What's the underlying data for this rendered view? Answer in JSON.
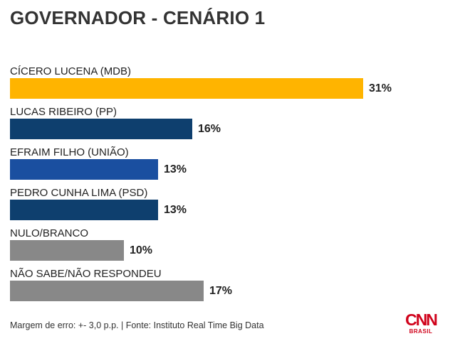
{
  "chart_data": {
    "type": "bar",
    "orientation": "horizontal",
    "title": "GOVERNADOR - CENÁRIO 1",
    "categories": [
      "CÍCERO LUCENA (MDB)",
      "LUCAS RIBEIRO (PP)",
      "EFRAIM FILHO (UNIÃO)",
      "PEDRO CUNHA LIMA (PSD)",
      "NULO/BRANCO",
      "NÃO SABE/NÃO RESPONDEU"
    ],
    "values": [
      31,
      16,
      13,
      13,
      10,
      17
    ],
    "value_labels": [
      "31%",
      "16%",
      "13%",
      "13%",
      "10%",
      "17%"
    ],
    "colors": [
      "#FFB400",
      "#0E3F6E",
      "#1A4FA0",
      "#0E3F6E",
      "#888888",
      "#888888"
    ],
    "xlim": [
      0,
      31
    ],
    "grid": false,
    "legend": "none"
  },
  "footer": {
    "note": "Margem de erro: +- 3,0 p.p. | Fonte: Instituto Real Time Big Data"
  },
  "logo": {
    "brand": "CNN",
    "sub": "BRASIL"
  }
}
